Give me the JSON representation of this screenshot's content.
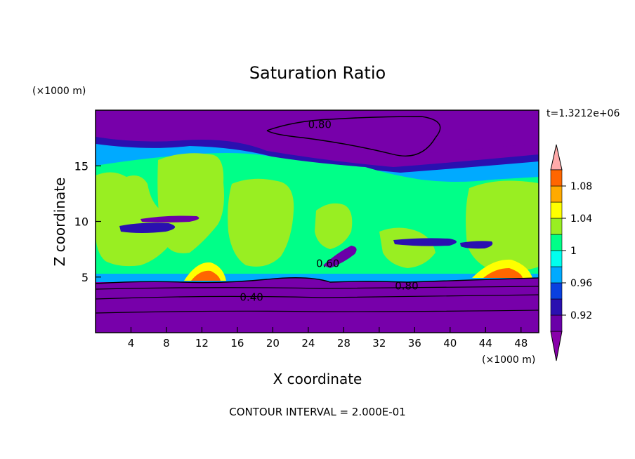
{
  "chart_data": {
    "type": "heatmap",
    "title": "Saturation Ratio",
    "xlabel": "X coordinate",
    "ylabel": "Z coordinate",
    "x_unit": "(×1000 m)",
    "y_unit": "(×1000 m)",
    "timestamp": "t=1.3212e+06",
    "footer": "CONTOUR INTERVAL = 2.000E-01",
    "xlim": [
      0,
      50
    ],
    "ylim": [
      0,
      20
    ],
    "x_ticks": [
      4,
      8,
      12,
      16,
      20,
      24,
      28,
      32,
      36,
      40,
      44,
      48
    ],
    "y_ticks": [
      5,
      10,
      15
    ],
    "colorbar": {
      "levels": [
        0.9,
        0.92,
        0.94,
        0.96,
        0.98,
        1.0,
        1.02,
        1.04,
        1.06,
        1.08,
        1.1
      ],
      "labels": [
        "0.92",
        "0.96",
        "1",
        "1.04",
        "1.08"
      ],
      "label_values": [
        0.92,
        0.96,
        1.0,
        1.04,
        1.08
      ],
      "colors": [
        "#6a00a8",
        "#2a10b0",
        "#0a40e0",
        "#00aaff",
        "#00ffee",
        "#00ff88",
        "#99ee22",
        "#ffff00",
        "#ffaa00",
        "#ff6600",
        "#ff2222"
      ],
      "under_color": "#8800aa",
      "over_color": "#ffaaaa"
    },
    "contour_labels": [
      {
        "text": "0.80",
        "x": 25.3,
        "z": 18.7
      },
      {
        "text": "0.80",
        "x": 35.1,
        "z": 4.2
      },
      {
        "text": "0.40",
        "x": 17.6,
        "z": 3.2
      },
      {
        "text": "0.60",
        "x": 26.2,
        "z": 6.2
      }
    ],
    "colors": {
      "dry_region": "#7700aa",
      "saturated_band": "#00ff88",
      "near_saturation": "#99ee22"
    }
  }
}
